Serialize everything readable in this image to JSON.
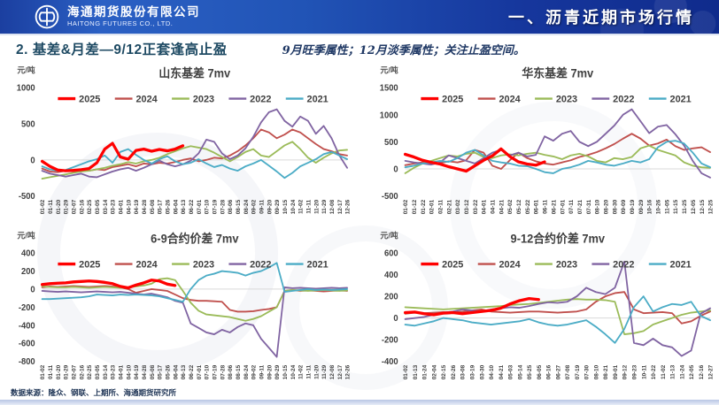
{
  "header": {
    "company_cn": "海通期货股份有限公司",
    "company_en": "HAITONG FUTURES CO., LTD.",
    "section_title": "一、沥青近期市场行情"
  },
  "slide": {
    "title": "2. 基差&月差—9/12正套逢高止盈",
    "subtitle": "9月旺季属性；12月淡季属性；关注止盈空间。",
    "source_note": "数据来源：隆众、钢联、上期所、海通期货研究所"
  },
  "colors": {
    "banner_blue": "#16379d",
    "title_teal": "#1e4a63",
    "subtitle_navy": "#1f3864",
    "grid_line": "#d9d9d9",
    "series_2025": "#FF0000",
    "series_2024": "#C0504D",
    "series_2023": "#9BBB59",
    "series_2022": "#8064A2",
    "series_2021": "#4BACC6"
  },
  "chart_data": [
    {
      "type": "line",
      "title": "山东基差 7mv",
      "unit": "元/吨",
      "ylim": [
        -500,
        1000
      ],
      "yticks": [
        1000,
        500,
        0,
        -500
      ],
      "legend_position": "top",
      "grid": "zero-line-only",
      "categories": [
        "01-02",
        "01-11",
        "01-20",
        "01-29",
        "02-07",
        "02-16",
        "02-25",
        "03-05",
        "03-14",
        "03-23",
        "04-01",
        "04-10",
        "04-19",
        "04-28",
        "05-08",
        "05-17",
        "05-26",
        "06-04",
        "06-13",
        "06-22",
        "07-01",
        "07-10",
        "07-19",
        "07-28",
        "08-06",
        "08-15",
        "08-24",
        "09-02",
        "09-11",
        "09-20",
        "09-29",
        "10-15",
        "10-24",
        "11-02",
        "11-11",
        "11-20",
        "11-29",
        "12-08",
        "12-17",
        "12-26"
      ],
      "series": [
        {
          "name": "2025",
          "color": "#FF0000",
          "width": 3.2,
          "values": [
            -20,
            -90,
            -140,
            -150,
            -145,
            -135,
            -120,
            -40,
            150,
            230,
            40,
            10,
            130,
            150,
            120,
            145,
            125,
            150,
            195
          ]
        },
        {
          "name": "2024",
          "color": "#C0504D",
          "width": 1.8,
          "values": [
            -120,
            -160,
            -170,
            -150,
            -160,
            -140,
            -150,
            -130,
            -140,
            -100,
            -80,
            -60,
            -90,
            -50,
            -60,
            -40,
            -50,
            -30,
            0,
            20,
            -20,
            0,
            30,
            20,
            60,
            120,
            200,
            300,
            420,
            380,
            300,
            350,
            420,
            380,
            300,
            220,
            150,
            120,
            80,
            60
          ]
        },
        {
          "name": "2023",
          "color": "#9BBB59",
          "width": 1.8,
          "values": [
            -260,
            -240,
            -220,
            -200,
            -180,
            -160,
            -150,
            -130,
            -110,
            -80,
            -60,
            -30,
            -50,
            -20,
            0,
            30,
            80,
            120,
            160,
            190,
            170,
            150,
            100,
            40,
            -20,
            40,
            110,
            150,
            60,
            40,
            120,
            200,
            250,
            150,
            30,
            -40,
            30,
            90,
            130,
            140
          ]
        },
        {
          "name": "2022",
          "color": "#8064A2",
          "width": 1.8,
          "values": [
            -150,
            -190,
            -210,
            -230,
            -210,
            -190,
            -230,
            -240,
            -200,
            -160,
            -130,
            -110,
            -150,
            -110,
            -60,
            -10,
            -60,
            -90,
            -60,
            -10,
            90,
            280,
            250,
            90,
            10,
            60,
            160,
            320,
            520,
            660,
            700,
            540,
            460,
            600,
            540,
            360,
            470,
            300,
            60,
            -110
          ]
        },
        {
          "name": "2021",
          "color": "#4BACC6",
          "width": 1.8,
          "values": [
            -90,
            -130,
            -150,
            -140,
            -100,
            -60,
            -20,
            10,
            60,
            -40,
            110,
            150,
            70,
            0,
            -50,
            10,
            50,
            -20,
            -60,
            -40,
            10,
            -50,
            -100,
            -70,
            -120,
            -150,
            -90,
            -50,
            0,
            -80,
            -160,
            -250,
            -180,
            -90,
            -40,
            10,
            80,
            110,
            60,
            10
          ]
        }
      ]
    },
    {
      "type": "line",
      "title": "华东基差 7mv",
      "unit": "元/吨",
      "ylim": [
        -500,
        1500
      ],
      "yticks": [
        1500,
        1000,
        500,
        0,
        -500
      ],
      "legend_position": "top",
      "grid": "zero-line-only",
      "categories": [
        "01-02",
        "01-12",
        "01-22",
        "02-01",
        "02-11",
        "02-21",
        "03-02",
        "03-12",
        "03-22",
        "04-01",
        "04-11",
        "04-21",
        "05-02",
        "05-12",
        "05-22",
        "06-01",
        "06-11",
        "06-21",
        "07-01",
        "07-11",
        "07-21",
        "07-31",
        "08-10",
        "08-20",
        "08-30",
        "09-09",
        "09-19",
        "09-29",
        "10-16",
        "10-26",
        "11-05",
        "11-15",
        "11-25",
        "12-05",
        "12-15",
        "12-25"
      ],
      "series": [
        {
          "name": "2025",
          "color": "#FF0000",
          "width": 3.2,
          "values": [
            270,
            220,
            160,
            120,
            90,
            40,
            0,
            -40,
            60,
            160,
            240,
            370,
            230,
            130,
            90,
            70,
            130
          ]
        },
        {
          "name": "2024",
          "color": "#C0504D",
          "width": 1.8,
          "values": [
            70,
            100,
            120,
            90,
            110,
            140,
            120,
            160,
            350,
            300,
            60,
            0,
            160,
            300,
            200,
            140,
            100,
            80,
            120,
            160,
            220,
            260,
            310,
            380,
            460,
            560,
            650,
            560,
            430,
            470,
            540,
            420,
            350,
            380,
            400,
            310
          ]
        },
        {
          "name": "2023",
          "color": "#9BBB59",
          "width": 1.8,
          "values": [
            -80,
            20,
            100,
            150,
            200,
            250,
            230,
            280,
            300,
            220,
            200,
            250,
            270,
            250,
            280,
            300,
            260,
            230,
            180,
            250,
            280,
            230,
            150,
            120,
            200,
            180,
            220,
            380,
            430,
            350,
            300,
            250,
            120,
            60,
            30,
            20
          ]
        },
        {
          "name": "2022",
          "color": "#8064A2",
          "width": 1.8,
          "values": [
            150,
            120,
            100,
            80,
            120,
            250,
            200,
            150,
            100,
            200,
            300,
            350,
            250,
            300,
            230,
            260,
            600,
            520,
            650,
            700,
            500,
            420,
            500,
            650,
            800,
            1000,
            1100,
            880,
            660,
            780,
            810,
            640,
            430,
            150,
            -80,
            -160
          ]
        },
        {
          "name": "2021",
          "color": "#4BACC6",
          "width": 1.8,
          "values": [
            30,
            60,
            100,
            120,
            150,
            130,
            200,
            300,
            350,
            250,
            150,
            120,
            100,
            60,
            50,
            0,
            -60,
            -80,
            0,
            30,
            80,
            150,
            120,
            80,
            60,
            100,
            150,
            120,
            180,
            400,
            500,
            520,
            470,
            300,
            100,
            30
          ]
        }
      ]
    },
    {
      "type": "line",
      "title": "6-9合约价差 7mv",
      "unit": "元/吨",
      "ylim": [
        -800,
        400
      ],
      "yticks": [
        400,
        200,
        0,
        -200,
        -400,
        -600,
        -800
      ],
      "legend_position": "top",
      "grid": "zero-line-only",
      "categories": [
        "01-02",
        "01-11",
        "01-20",
        "01-29",
        "02-07",
        "02-16",
        "02-25",
        "03-05",
        "03-14",
        "03-23",
        "04-01",
        "04-10",
        "04-19",
        "04-28",
        "05-08",
        "05-17",
        "05-26",
        "06-04",
        "06-13",
        "06-22",
        "07-01",
        "07-10",
        "07-19",
        "07-28",
        "08-06",
        "08-15",
        "08-24",
        "09-02",
        "09-11",
        "09-20",
        "09-29",
        "10-15",
        "10-24",
        "11-02",
        "11-11",
        "11-20",
        "11-29",
        "12-08",
        "12-17",
        "12-26"
      ],
      "series": [
        {
          "name": "2025",
          "color": "#FF0000",
          "width": 3.2,
          "values": [
            50,
            60,
            65,
            70,
            80,
            85,
            90,
            85,
            75,
            60,
            30,
            15,
            45,
            70,
            100,
            90,
            55,
            40
          ]
        },
        {
          "name": "2024",
          "color": "#C0504D",
          "width": 1.8,
          "values": [
            20,
            30,
            25,
            30,
            35,
            30,
            25,
            30,
            35,
            30,
            20,
            0,
            -40,
            -20,
            0,
            -10,
            -20,
            -60,
            -100,
            -120,
            -130,
            -130,
            -135,
            -140,
            -230,
            -250,
            -250,
            -245,
            -230,
            -220,
            -200,
            -20,
            -10,
            -20,
            -15,
            -20,
            -25,
            -20,
            -15,
            -20
          ]
        },
        {
          "name": "2023",
          "color": "#9BBB59",
          "width": 1.8,
          "values": [
            30,
            25,
            20,
            20,
            25,
            20,
            15,
            20,
            25,
            20,
            15,
            20,
            30,
            40,
            60,
            110,
            120,
            100,
            -20,
            -150,
            -240,
            -280,
            -290,
            -300,
            -310,
            -330,
            -350,
            -330,
            -300,
            -250,
            -200,
            -20,
            -10,
            -15,
            -20,
            -15,
            -10,
            -15,
            -20,
            -15
          ]
        },
        {
          "name": "2022",
          "color": "#8064A2",
          "width": 1.8,
          "values": [
            -20,
            -25,
            -30,
            -25,
            -30,
            -35,
            -30,
            -25,
            -30,
            -35,
            -30,
            -40,
            -50,
            -60,
            -50,
            -70,
            -90,
            -130,
            -150,
            -380,
            -430,
            -480,
            -500,
            -450,
            -480,
            -420,
            -380,
            -400,
            -550,
            -650,
            -750,
            20,
            10,
            15,
            10,
            5,
            10,
            15,
            10,
            15
          ]
        },
        {
          "name": "2021",
          "color": "#4BACC6",
          "width": 1.8,
          "values": [
            -110,
            -110,
            -105,
            -100,
            -95,
            -90,
            -80,
            -60,
            -65,
            -70,
            -60,
            -65,
            -60,
            -65,
            -70,
            -80,
            -100,
            -120,
            -140,
            0,
            100,
            150,
            170,
            200,
            190,
            180,
            150,
            180,
            200,
            240,
            290,
            -30,
            -20,
            -10,
            0,
            -10,
            -5,
            -10,
            -5,
            0
          ]
        }
      ]
    },
    {
      "type": "line",
      "title": "9-12合约价差 7mv",
      "unit": "元/吨",
      "ylim": [
        -400,
        600
      ],
      "yticks": [
        600,
        400,
        200,
        0,
        -200,
        -400
      ],
      "legend_position": "top",
      "grid": "zero-line-only",
      "categories": [
        "01-02",
        "01-13",
        "01-24",
        "02-04",
        "02-15",
        "02-26",
        "03-08",
        "03-19",
        "03-30",
        "04-10",
        "04-21",
        "05-03",
        "05-14",
        "05-25",
        "06-05",
        "06-16",
        "06-27",
        "07-08",
        "07-19",
        "07-30",
        "08-10",
        "08-21",
        "09-01",
        "09-12",
        "09-23",
        "10-11",
        "10-22",
        "11-02",
        "11-13",
        "11-24",
        "12-05",
        "12-16",
        "12-27"
      ],
      "series": [
        {
          "name": "2025",
          "color": "#FF0000",
          "width": 3.2,
          "values": [
            50,
            55,
            40,
            30,
            45,
            50,
            40,
            50,
            60,
            70,
            90,
            130,
            160,
            180,
            170
          ]
        },
        {
          "name": "2024",
          "color": "#C0504D",
          "width": 1.8,
          "values": [
            40,
            50,
            45,
            50,
            55,
            50,
            60,
            70,
            80,
            60,
            55,
            50,
            55,
            60,
            60,
            55,
            50,
            55,
            60,
            80,
            150,
            200,
            230,
            240,
            80,
            45,
            50,
            55,
            45,
            -50,
            -30,
            20,
            60
          ]
        },
        {
          "name": "2023",
          "color": "#9BBB59",
          "width": 1.8,
          "values": [
            100,
            95,
            90,
            85,
            80,
            85,
            90,
            95,
            100,
            105,
            110,
            120,
            125,
            130,
            140,
            150,
            160,
            170,
            175,
            170,
            170,
            165,
            150,
            -150,
            -140,
            -120,
            -60,
            -30,
            0,
            30,
            50,
            60,
            70
          ]
        },
        {
          "name": "2022",
          "color": "#8064A2",
          "width": 1.8,
          "values": [
            -10,
            0,
            10,
            30,
            50,
            60,
            80,
            70,
            60,
            80,
            90,
            100,
            95,
            110,
            130,
            145,
            140,
            150,
            200,
            280,
            240,
            220,
            280,
            520,
            -230,
            -250,
            -190,
            -250,
            -270,
            -350,
            -300,
            40,
            90
          ]
        },
        {
          "name": "2021",
          "color": "#4BACC6",
          "width": 1.8,
          "values": [
            -60,
            -70,
            -50,
            -30,
            0,
            -10,
            -20,
            -40,
            -50,
            -60,
            -50,
            -40,
            -30,
            -10,
            -40,
            -60,
            -70,
            -60,
            -40,
            -20,
            -80,
            -150,
            -230,
            -100,
            100,
            200,
            60,
            100,
            130,
            120,
            150,
            20,
            -20
          ]
        }
      ]
    }
  ]
}
